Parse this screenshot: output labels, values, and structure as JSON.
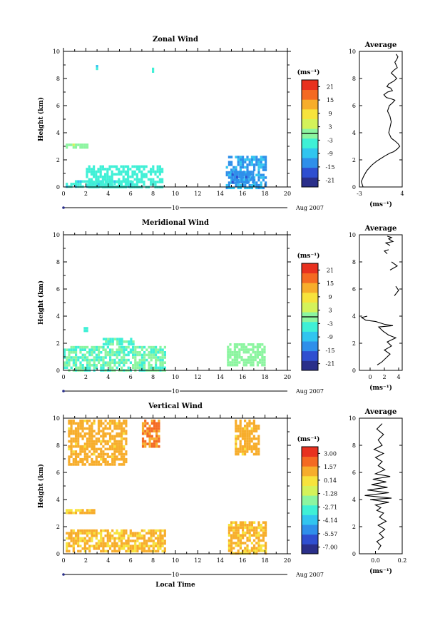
{
  "chart_data": [
    {
      "type": "heatmap",
      "title": "Zonal Wind",
      "ylabel": "Height (km)",
      "xlim": [
        0,
        20
      ],
      "ylim": [
        0,
        10
      ],
      "x_ticks": [
        "0",
        "2",
        "4",
        "6",
        "8",
        "10",
        "12",
        "14",
        "16",
        "18",
        "20"
      ],
      "y_ticks": [
        "0",
        "2",
        "4",
        "6",
        "8",
        "10"
      ],
      "date_marker": "10",
      "date_label": "Aug 2007",
      "colorbar": {
        "unit": "(ms⁻¹)",
        "ticks": [
          "21",
          "15",
          "9",
          "3",
          "-3",
          "-9",
          "-15",
          "-21"
        ],
        "range": [
          -24,
          24
        ]
      },
      "patches": [
        {
          "x": [
            0.2,
            6.0
          ],
          "y": [
            0.0,
            0.5
          ],
          "value": -6
        },
        {
          "x": [
            2.0,
            8.8
          ],
          "y": [
            0.0,
            1.6
          ],
          "value": -4
        },
        {
          "x": [
            0.2,
            2.2
          ],
          "y": [
            2.9,
            3.2
          ],
          "value": 1
        },
        {
          "x": [
            14.5,
            18.0
          ],
          "y": [
            0.0,
            2.3
          ],
          "value": -11
        },
        {
          "x": [
            15.0,
            17.0
          ],
          "y": [
            0.3,
            1.2
          ],
          "value": -14
        },
        {
          "x": [
            2.9,
            3.1
          ],
          "y": [
            8.8,
            9.0
          ],
          "value": -6
        },
        {
          "x": [
            7.9,
            8.1
          ],
          "y": [
            8.6,
            8.8
          ],
          "value": -6
        }
      ]
    },
    {
      "type": "heatmap",
      "title": "Meridional Wind",
      "ylabel": "Height (km)",
      "xlim": [
        0,
        20
      ],
      "ylim": [
        0,
        10
      ],
      "x_ticks": [
        "0",
        "2",
        "4",
        "6",
        "8",
        "10",
        "12",
        "14",
        "16",
        "18",
        "20"
      ],
      "y_ticks": [
        "0",
        "2",
        "4",
        "6",
        "8",
        "10"
      ],
      "date_marker": "10",
      "date_label": "Aug 2007",
      "colorbar": {
        "unit": "(ms⁻¹)",
        "ticks": [
          "21",
          "15",
          "9",
          "3",
          "-3",
          "-9",
          "-15",
          "-21"
        ],
        "range": [
          -24,
          24
        ]
      },
      "patches": [
        {
          "x": [
            0.0,
            9.0
          ],
          "y": [
            0.0,
            1.8
          ],
          "value": -2
        },
        {
          "x": [
            3.5,
            6.2
          ],
          "y": [
            2.0,
            2.4
          ],
          "value": -3
        },
        {
          "x": [
            14.6,
            18.0
          ],
          "y": [
            0.3,
            2.0
          ],
          "value": 0
        },
        {
          "x": [
            1.8,
            2.1
          ],
          "y": [
            3.0,
            3.2
          ],
          "value": -4
        }
      ]
    },
    {
      "type": "heatmap",
      "title": "Vertical Wind",
      "ylabel": "Height (km)",
      "xlabel": "Local Time",
      "xlim": [
        0,
        20
      ],
      "ylim": [
        0,
        10
      ],
      "x_ticks": [
        "0",
        "2",
        "4",
        "6",
        "8",
        "10",
        "12",
        "14",
        "16",
        "18",
        "20"
      ],
      "y_ticks": [
        "0",
        "2",
        "4",
        "6",
        "8",
        "10"
      ],
      "date_marker": "10",
      "date_label": "Aug 2007",
      "colorbar": {
        "unit": "(ms⁻¹)",
        "ticks": [
          "3.00",
          "1.57",
          "0.14",
          "-1.28",
          "-2.71",
          "-4.14",
          "-5.57",
          "-7.00"
        ],
        "range": [
          -7.7,
          3.7
        ]
      },
      "patches": [
        {
          "x": [
            0.2,
            9.0
          ],
          "y": [
            0.1,
            1.8
          ],
          "value": 0.7
        },
        {
          "x": [
            0.2,
            2.8
          ],
          "y": [
            3.0,
            3.3
          ],
          "value": 0.7
        },
        {
          "x": [
            0.4,
            5.5
          ],
          "y": [
            6.5,
            9.9
          ],
          "value": 0.9
        },
        {
          "x": [
            7.0,
            8.5
          ],
          "y": [
            8.0,
            9.9
          ],
          "value": 1.7
        },
        {
          "x": [
            14.7,
            18.0
          ],
          "y": [
            0.1,
            2.4
          ],
          "value": 0.7
        },
        {
          "x": [
            15.3,
            17.5
          ],
          "y": [
            7.3,
            9.9
          ],
          "value": 0.9
        }
      ]
    }
  ],
  "averages": [
    {
      "title": "Average",
      "xlabel": "(ms⁻¹)",
      "xlim": [
        -3,
        4
      ],
      "ylim": [
        0,
        10
      ],
      "x_ticks": [
        "-3",
        "4"
      ],
      "y_ticks": [
        "0",
        "2",
        "4",
        "6",
        "8",
        "10"
      ],
      "profile": {
        "x": [
          -2.4,
          -2.7,
          -2.3,
          -1.8,
          -1.0,
          -0.2,
          0.5,
          1.2,
          2.0,
          2.6,
          3.2,
          3.6,
          3.3,
          2.8,
          2.2,
          1.8,
          2.0,
          2.2,
          2.0,
          1.6,
          1.9,
          2.4,
          2.8,
          2.2,
          1.4,
          1.0,
          1.6,
          2.4,
          2.1,
          1.5,
          1.8,
          2.6,
          3.1,
          2.7,
          2.2,
          2.6,
          3.2,
          3.0,
          2.8,
          3.1,
          3.3,
          3.0
        ],
        "y": [
          0.0,
          0.4,
          0.8,
          1.2,
          1.6,
          1.9,
          2.1,
          2.3,
          2.5,
          2.6,
          2.8,
          3.0,
          3.2,
          3.4,
          3.6,
          4.0,
          4.4,
          4.8,
          5.2,
          5.6,
          6.0,
          6.2,
          6.4,
          6.5,
          6.6,
          6.8,
          7.0,
          7.1,
          7.3,
          7.4,
          7.6,
          7.8,
          8.0,
          8.2,
          8.4,
          8.6,
          8.8,
          9.0,
          9.2,
          9.4,
          9.6,
          9.8
        ]
      }
    },
    {
      "title": "Average",
      "xlabel": "(ms⁻¹)",
      "xlim": [
        -1.5,
        4.5
      ],
      "ylim": [
        0,
        10
      ],
      "x_ticks": [
        "0",
        "2",
        "4"
      ],
      "y_ticks": [
        "0",
        "2",
        "4",
        "6",
        "8",
        "10"
      ],
      "profile": {
        "x": [
          1.0,
          1.6,
          2.2,
          2.8,
          2.0,
          3.0,
          2.4,
          3.6,
          2.6,
          1.8,
          1.2,
          3.2,
          2.0,
          0.8,
          -0.6,
          -1.2,
          -0.4
        ],
        "y": [
          0.4,
          0.6,
          0.9,
          1.2,
          1.5,
          1.8,
          2.1,
          2.4,
          2.6,
          2.9,
          3.2,
          3.3,
          3.4,
          3.6,
          3.7,
          3.9,
          4.0
        ]
      },
      "segments": [
        {
          "x": [
            3.4,
            4.0,
            3.6
          ],
          "y": [
            5.5,
            5.9,
            6.2
          ]
        },
        {
          "x": [
            2.8,
            3.8,
            3.0
          ],
          "y": [
            7.4,
            7.7,
            8.0
          ]
        },
        {
          "x": [
            2.4,
            2.0,
            2.6
          ],
          "y": [
            8.6,
            8.8,
            8.9
          ]
        },
        {
          "x": [
            2.8,
            2.2,
            3.2,
            2.6,
            3.0,
            2.4
          ],
          "y": [
            9.2,
            9.4,
            9.5,
            9.7,
            9.8,
            9.9
          ]
        }
      ]
    },
    {
      "title": "Average",
      "xlabel": "(ms⁻¹)",
      "xlim": [
        -0.12,
        0.2
      ],
      "ylim": [
        0,
        10
      ],
      "x_ticks": [
        "0.0",
        "0.2"
      ],
      "y_ticks": [
        "0",
        "2",
        "4",
        "6",
        "8",
        "10"
      ],
      "profile": {
        "x": [
          0.02,
          0.04,
          0.01,
          0.06,
          0.03,
          0.07,
          0.02,
          0.08,
          0.03,
          0.06,
          0.01,
          0.04,
          0.0,
          0.1,
          -0.04,
          0.12,
          -0.08,
          0.1,
          -0.06,
          0.09,
          -0.03,
          0.08,
          -0.02,
          0.11,
          0.0,
          0.07,
          0.02,
          0.05,
          0.0,
          0.06,
          -0.01,
          0.05,
          0.02,
          0.06,
          0.01,
          0.05
        ],
        "y": [
          0.3,
          0.6,
          0.9,
          1.2,
          1.5,
          1.8,
          2.1,
          2.4,
          2.7,
          3.0,
          3.2,
          3.4,
          3.6,
          3.8,
          4.0,
          4.1,
          4.3,
          4.5,
          4.7,
          4.9,
          5.1,
          5.3,
          5.5,
          5.7,
          5.9,
          6.2,
          6.5,
          6.8,
          7.1,
          7.4,
          7.7,
          8.0,
          8.4,
          8.8,
          9.2,
          9.6
        ]
      }
    }
  ]
}
